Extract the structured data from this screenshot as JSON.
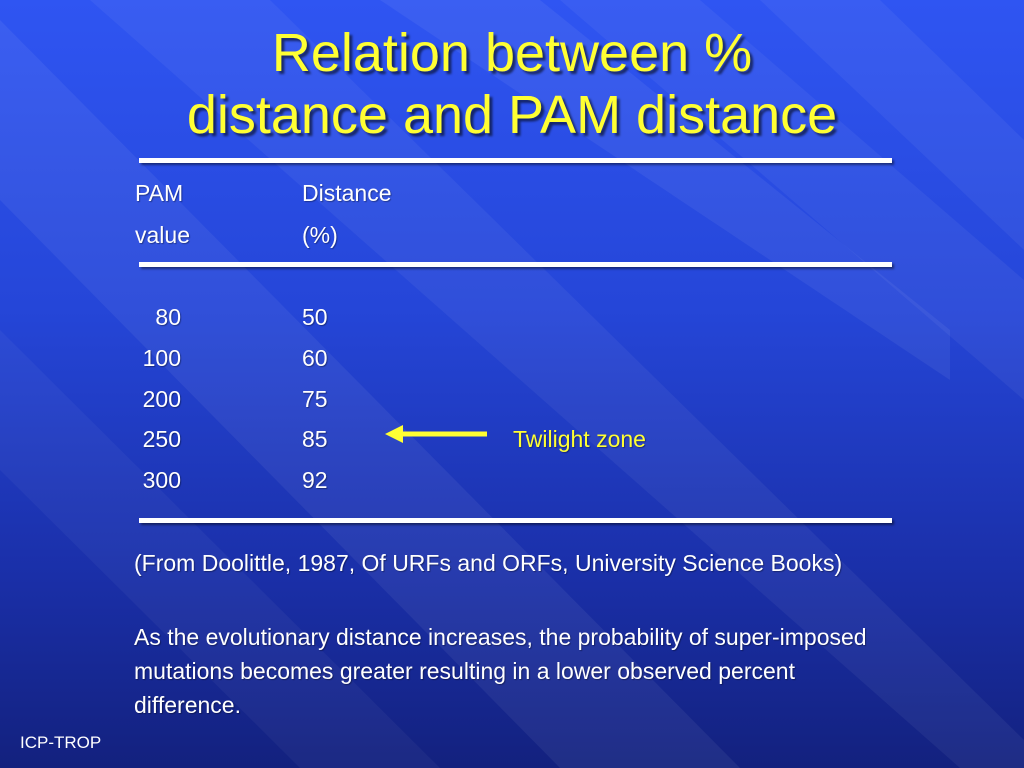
{
  "slide": {
    "title_line1": "Relation between %",
    "title_line2": "distance and PAM distance",
    "header": {
      "col1_line1": "PAM",
      "col1_line2": "value",
      "col2_line1": "Distance",
      "col2_line2": "(%)"
    },
    "rows": [
      {
        "pam": "80",
        "distance": "50"
      },
      {
        "pam": "100",
        "distance": "60"
      },
      {
        "pam": "200",
        "distance": "75"
      },
      {
        "pam": "250",
        "distance": "85"
      },
      {
        "pam": "300",
        "distance": "92"
      }
    ],
    "annotation": "Twilight zone",
    "source": "(From Doolittle, 1987, Of URFs and ORFs, University Science Books)",
    "note": "As the evolutionary distance increases, the probability of super-imposed mutations becomes greater resulting in a lower observed percent difference.",
    "footer": "ICP-TROP"
  },
  "colors": {
    "title": "#ffff33",
    "text": "#ffffff",
    "annotation": "#ffff33",
    "background": "#2546d8"
  },
  "icons": {
    "arrow": "left-arrow-icon"
  }
}
